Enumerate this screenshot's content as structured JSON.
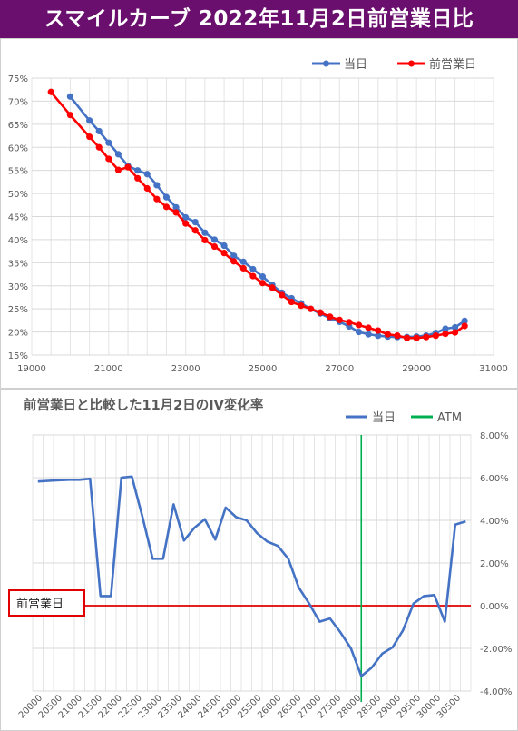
{
  "banner": {
    "title": "スマイルカーブ 2022年11月2日前営業日比"
  },
  "colors": {
    "banner_bg": "#6a0f6e",
    "today": "#4472c4",
    "prev": "#ff0000",
    "atm": "#00b050"
  },
  "chart_data": [
    {
      "type": "line",
      "title": "",
      "xlabel": "",
      "ylabel": "",
      "xlim": [
        19000,
        31000
      ],
      "ylim": [
        15,
        75
      ],
      "x_ticks": [
        "19000",
        "21000",
        "23000",
        "25000",
        "27000",
        "29000",
        "31000"
      ],
      "y_ticks": [
        "15%",
        "20%",
        "25%",
        "30%",
        "35%",
        "40%",
        "45%",
        "50%",
        "55%",
        "60%",
        "65%",
        "70%",
        "75%"
      ],
      "y_tick_values": [
        15,
        20,
        25,
        30,
        35,
        40,
        45,
        50,
        55,
        60,
        65,
        70,
        75
      ],
      "grid": true,
      "legend_position": "top-right",
      "series": [
        {
          "name": "当日",
          "color": "#4472c4",
          "x": [
            20000,
            20500,
            20750,
            21000,
            21250,
            21500,
            21750,
            22000,
            22250,
            22500,
            22750,
            23000,
            23250,
            23500,
            23750,
            24000,
            24250,
            24500,
            24750,
            25000,
            25250,
            25500,
            25750,
            26000,
            26250,
            26500,
            26750,
            27000,
            27250,
            27500,
            27750,
            28000,
            28250,
            28500,
            28750,
            29000,
            29250,
            29500,
            29750,
            30000,
            30250
          ],
          "values": [
            71.0,
            65.8,
            63.5,
            61.0,
            58.5,
            56.0,
            55.0,
            54.2,
            51.8,
            49.2,
            47.0,
            44.8,
            43.8,
            41.5,
            40.0,
            38.7,
            36.5,
            35.2,
            33.6,
            32.0,
            30.2,
            28.5,
            27.3,
            26.2,
            25.0,
            24.0,
            23.0,
            22.2,
            21.2,
            20.0,
            19.5,
            19.2,
            19.0,
            18.9,
            18.9,
            19.0,
            19.2,
            19.8,
            20.7,
            21.0,
            22.4
          ]
        },
        {
          "name": "前営業日",
          "color": "#ff0000",
          "x": [
            19500,
            20000,
            20500,
            20750,
            21000,
            21250,
            21500,
            21750,
            22000,
            22250,
            22500,
            22750,
            23000,
            23250,
            23500,
            23750,
            24000,
            24250,
            24500,
            24750,
            25000,
            25250,
            25500,
            25750,
            26000,
            26250,
            26500,
            26750,
            27000,
            27250,
            27500,
            27750,
            28000,
            28250,
            28500,
            28750,
            29000,
            29250,
            29500,
            29750,
            30000,
            30250
          ],
          "values": [
            72.0,
            67.0,
            62.3,
            60.0,
            57.5,
            55.1,
            55.7,
            53.3,
            51.1,
            48.8,
            47.1,
            45.9,
            43.5,
            42.0,
            39.9,
            38.5,
            37.1,
            35.3,
            33.8,
            32.1,
            30.6,
            29.6,
            28.0,
            26.5,
            25.7,
            25.0,
            24.2,
            23.3,
            22.6,
            22.1,
            21.5,
            20.9,
            20.3,
            19.5,
            19.2,
            18.7,
            18.7,
            18.9,
            19.2,
            19.6,
            19.9,
            21.3
          ]
        }
      ]
    },
    {
      "type": "line",
      "title": "前営業日と比較した11月2日のIV変化率",
      "xlabel": "",
      "ylabel": "",
      "ylim": [
        -4,
        8
      ],
      "x_ticks": [
        "20000",
        "20500",
        "21000",
        "21500",
        "22000",
        "22500",
        "23000",
        "23500",
        "24000",
        "24500",
        "25000",
        "25500",
        "26000",
        "26500",
        "27000",
        "27500",
        "28000",
        "28500",
        "29000",
        "29500",
        "30000",
        "30500"
      ],
      "y_ticks": [
        "8.00%",
        "6.00%",
        "4.00%",
        "2.00%",
        "0.00%",
        "-2.00%",
        "-4.00%"
      ],
      "y_tick_values": [
        8,
        6,
        4,
        2,
        0,
        -2,
        -4
      ],
      "grid": true,
      "legend_position": "top-right",
      "baseline_label": "前営業日",
      "series": [
        {
          "name": "当日",
          "color": "#4472c4",
          "values": [
            5.82,
            5.85,
            5.88,
            5.9,
            5.9,
            5.95,
            0.45,
            0.45,
            6.0,
            6.05,
            4.2,
            2.2,
            2.2,
            4.75,
            3.05,
            3.65,
            4.05,
            3.1,
            4.6,
            4.15,
            4.0,
            3.4,
            3.0,
            2.8,
            2.2,
            0.85,
            0.1,
            -0.75,
            -0.6,
            -1.25,
            -2.0,
            -3.3,
            -2.9,
            -2.25,
            -1.95,
            -1.15,
            0.1,
            0.45,
            0.5,
            -0.75,
            3.8,
            3.95
          ]
        },
        {
          "name": "ATM",
          "color": "#00b050",
          "x_category_index": 31
        }
      ]
    }
  ]
}
